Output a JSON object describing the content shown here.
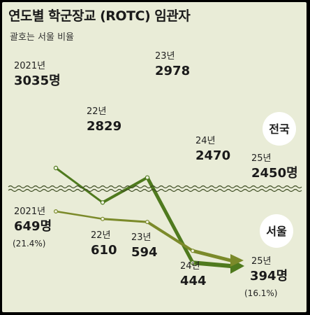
{
  "title": "연도별 학군장교 (ROTC) 임관자",
  "subtitle": "괄호는 서울 비율",
  "colors": {
    "background": "#e9ecd7",
    "national_line": "#4f7a1e",
    "seoul_line": "#7b8a2a",
    "badge": "#ffffff"
  },
  "chart_data": [
    {
      "type": "line",
      "region": "전국",
      "x": [
        "2021년",
        "22년",
        "23년",
        "24년",
        "25년"
      ],
      "values": [
        3035,
        2829,
        2978,
        2470,
        2450
      ],
      "labels": [
        "3035명",
        "2829",
        "2978",
        "2470",
        "2450명"
      ]
    },
    {
      "type": "line",
      "region": "서울",
      "x": [
        "2021년",
        "22년",
        "23년",
        "24년",
        "25년"
      ],
      "values": [
        649,
        610,
        594,
        444,
        394
      ],
      "labels": [
        "649명",
        "610",
        "594",
        "444",
        "394명"
      ],
      "shares": [
        "(21.4%)",
        "",
        "",
        "",
        "(16.1%)"
      ]
    }
  ]
}
